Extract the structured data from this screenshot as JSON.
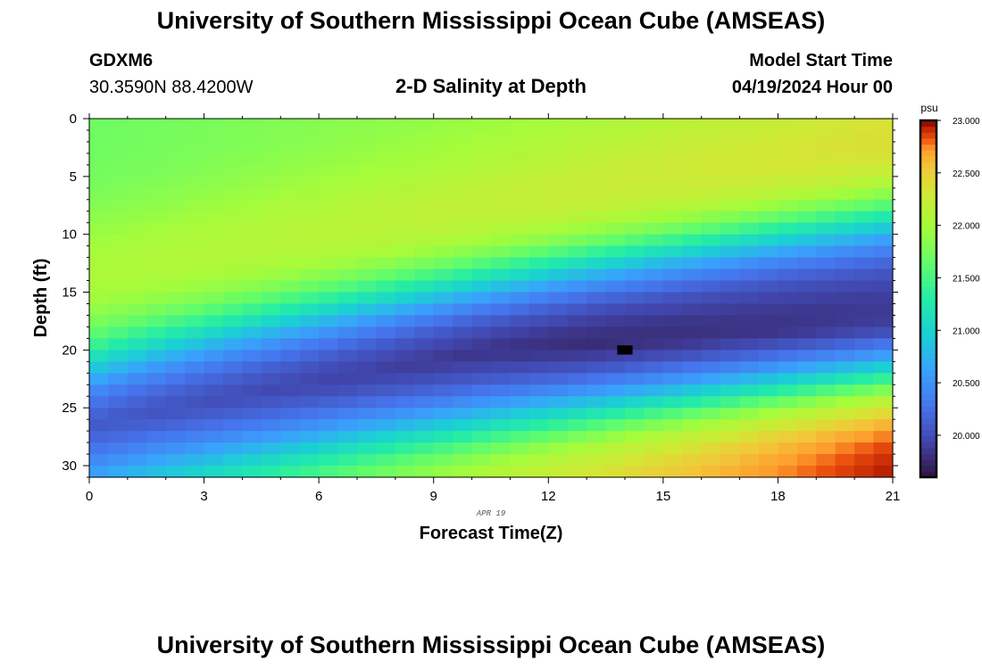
{
  "header": {
    "title": "University of Southern Mississippi Ocean Cube (AMSEAS)",
    "station_id": "GDXM6",
    "coordinates": "30.3590N  88.4200W",
    "plot_title": "2-D Salinity at Depth",
    "start_label": "Model Start Time",
    "start_value": "04/19/2024 Hour 00"
  },
  "footer": {
    "title": "University of Southern Mississippi Ocean Cube (AMSEAS)"
  },
  "chart_data": {
    "type": "heatmap",
    "title": "2-D Salinity at Depth",
    "xlabel": "Forecast Time(Z)",
    "ylabel": "Depth (ft)",
    "date_label": "APR 19",
    "x_range": [
      0,
      21
    ],
    "y_range": [
      0,
      31
    ],
    "y_inverted": true,
    "x_ticks": [
      0,
      3,
      6,
      9,
      12,
      15,
      18,
      21
    ],
    "y_ticks": [
      0,
      5,
      10,
      15,
      20,
      25,
      30
    ],
    "colorbar": {
      "unit": "psu",
      "range": [
        19.6,
        23.0
      ],
      "ticks": [
        "23.000",
        "22.500",
        "22.000",
        "21.500",
        "21.000",
        "20.500",
        "20.000"
      ],
      "tick_values": [
        23.0,
        22.5,
        22.0,
        21.5,
        21.0,
        20.5,
        20.0
      ]
    },
    "grid": {
      "time_steps": 42,
      "depth_steps": 31
    },
    "field_model": {
      "surface_salinity_start": 21.7,
      "surface_salinity_end": 22.1,
      "upper_layer_peak_depth_ft": 14,
      "halocline_depth_start_ft": 21.5,
      "halocline_depth_end_ft": 8.5,
      "fresh_core_depth_start_ft": 26.5,
      "fresh_core_depth_mid_ft": 20,
      "fresh_core_min_salinity": 19.6,
      "lower_halocline_depth_start_ft": 31.5,
      "lower_halocline_depth_end_ft": 22.5,
      "bottom_salinity_end": 23.0
    },
    "missing_cell": {
      "time": 14,
      "depth_ft": 20
    },
    "missing_color": "#000000"
  }
}
